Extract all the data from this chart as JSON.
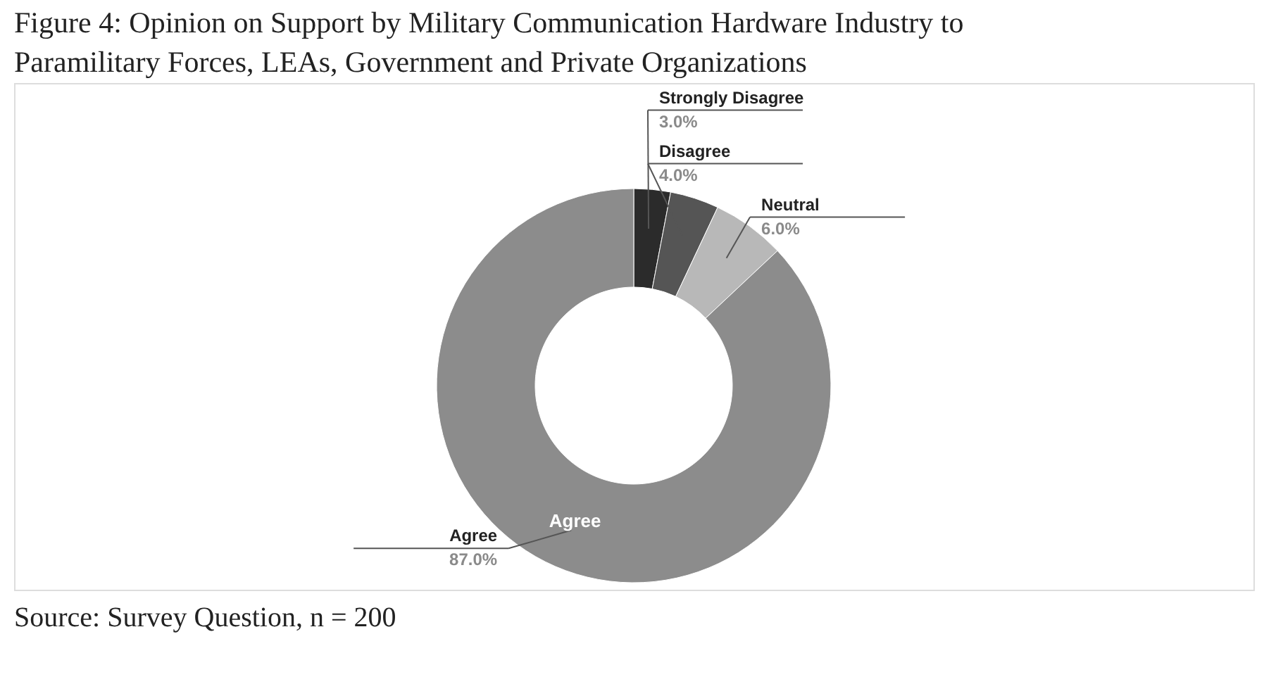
{
  "chart_data": {
    "type": "donut",
    "title": "Figure 4: Opinion on Support by Military Communication Hardware Industry to Paramilitary Forces, LEAs, Government and Private Organizations",
    "categories": [
      "Strongly Disagree",
      "Disagree",
      "Neutral",
      "Agree"
    ],
    "values": [
      3,
      4,
      6,
      87
    ],
    "colors": [
      "#2b2b2b",
      "#555555",
      "#b8b8b8",
      "#8c8c8c"
    ],
    "value_labels": [
      "3.0%",
      "4.0%",
      "6.0%",
      "87.0%"
    ],
    "annotations": [
      {
        "text": "Agree",
        "x": "Agree"
      },
      "Source: Survey Question, n = 200"
    ]
  }
}
